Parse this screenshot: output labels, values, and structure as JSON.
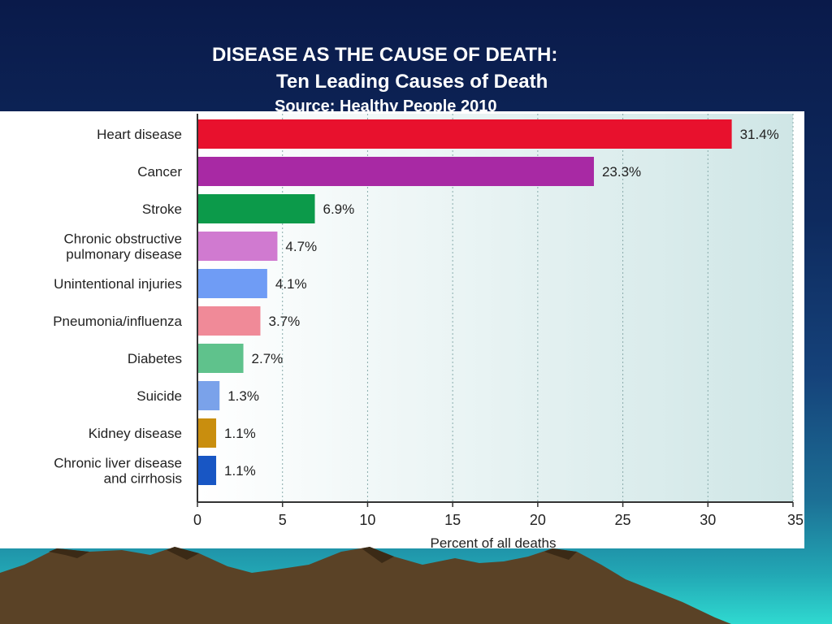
{
  "slide": {
    "title": "DISEASE AS THE CAUSE OF DEATH:",
    "subtitle": "Ten Leading Causes of Death",
    "source": "Source: Healthy People 2010"
  },
  "chart_data": {
    "type": "bar",
    "orientation": "horizontal",
    "categories": [
      [
        "Heart disease"
      ],
      [
        "Cancer"
      ],
      [
        "Stroke"
      ],
      [
        "Chronic obstructive",
        "pulmonary disease"
      ],
      [
        "Unintentional injuries"
      ],
      [
        "Pneumonia/influenza"
      ],
      [
        "Diabetes"
      ],
      [
        "Suicide"
      ],
      [
        "Kidney disease"
      ],
      [
        "Chronic liver disease",
        "and cirrhosis"
      ]
    ],
    "values": [
      31.4,
      23.3,
      6.9,
      4.7,
      4.1,
      3.7,
      2.7,
      1.3,
      1.1,
      1.1
    ],
    "value_labels": [
      "31.4%",
      "23.3%",
      "6.9%",
      "4.7%",
      "4.1%",
      "3.7%",
      "2.7%",
      "1.3%",
      "1.1%",
      "1.1%"
    ],
    "colors": [
      "#e8112d",
      "#a829a4",
      "#0c9a4a",
      "#d07ad0",
      "#6f9cf5",
      "#f08a98",
      "#5fc28c",
      "#7aa2ea",
      "#c98e0e",
      "#1856c4"
    ],
    "xlabel": "Percent of all deaths",
    "ylabel": "",
    "xlim": [
      0,
      35
    ],
    "xticks": [
      0,
      5,
      10,
      15,
      20,
      25,
      30,
      35
    ],
    "grid": "vertical dotted lines at ticks",
    "legend": "none"
  }
}
